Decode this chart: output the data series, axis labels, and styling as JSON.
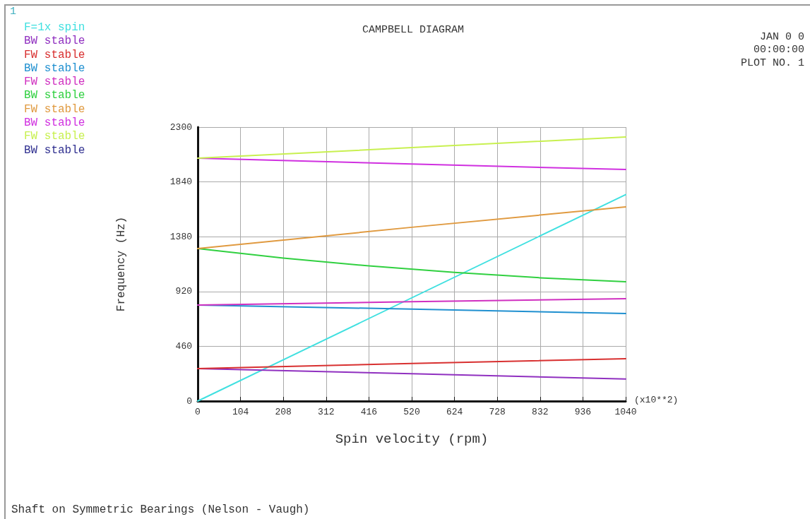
{
  "chart_data": {
    "type": "line",
    "title": "CAMPBELL DIAGRAM",
    "xlabel": "Spin velocity (rpm)",
    "ylabel": "Frequency (Hz)",
    "xlim": [
      0,
      1040
    ],
    "xticks": [
      0,
      104,
      208,
      312,
      416,
      520,
      624,
      728,
      832,
      936,
      1040
    ],
    "ylim": [
      0,
      2300
    ],
    "yticks": [
      0,
      460,
      920,
      1380,
      1840,
      2300
    ],
    "grid": true,
    "legend": "top left",
    "marker": "none",
    "line_style": "solid",
    "annotations": [
      "1",
      "JAN 0 0",
      "00:00:00",
      "PLOT NO. 1",
      "(x10**2)",
      "Shaft on Symmetric Bearings (Nelson - Vaugh)"
    ],
    "series": [
      {
        "name": "F=1x spin",
        "color": "#40e0e0",
        "x": [
          0,
          1040
        ],
        "values": [
          0,
          1733
        ]
      },
      {
        "name": "BW stable",
        "color": "#9030c0",
        "x": [
          0,
          520,
          1040
        ],
        "values": [
          273,
          230,
          185
        ]
      },
      {
        "name": "FW stable",
        "color": "#d83030",
        "x": [
          0,
          520,
          1040
        ],
        "values": [
          273,
          315,
          356
        ]
      },
      {
        "name": "BW stable",
        "color": "#2090d0",
        "x": [
          0,
          520,
          1040
        ],
        "values": [
          806,
          772,
          735
        ]
      },
      {
        "name": "FW stable",
        "color": "#d030c0",
        "x": [
          0,
          520,
          1040
        ],
        "values": [
          806,
          834,
          860
        ]
      },
      {
        "name": "BW stable",
        "color": "#30d040",
        "x": [
          0,
          208,
          416,
          624,
          832,
          1040
        ],
        "values": [
          1280,
          1200,
          1135,
          1080,
          1035,
          1002
        ]
      },
      {
        "name": "FW stable",
        "color": "#e09a40",
        "x": [
          0,
          520,
          1040
        ],
        "values": [
          1280,
          1459,
          1630
        ]
      },
      {
        "name": "BW stable",
        "color": "#d030e0",
        "x": [
          0,
          520,
          1040
        ],
        "values": [
          2039,
          1990,
          1944
        ]
      },
      {
        "name": "FW stable",
        "color": "#c8f050",
        "x": [
          0,
          520,
          1040
        ],
        "values": [
          2039,
          2128,
          2217
        ]
      },
      {
        "name": "BW stable",
        "color": "#303090",
        "values": [
          null
        ]
      }
    ]
  }
}
